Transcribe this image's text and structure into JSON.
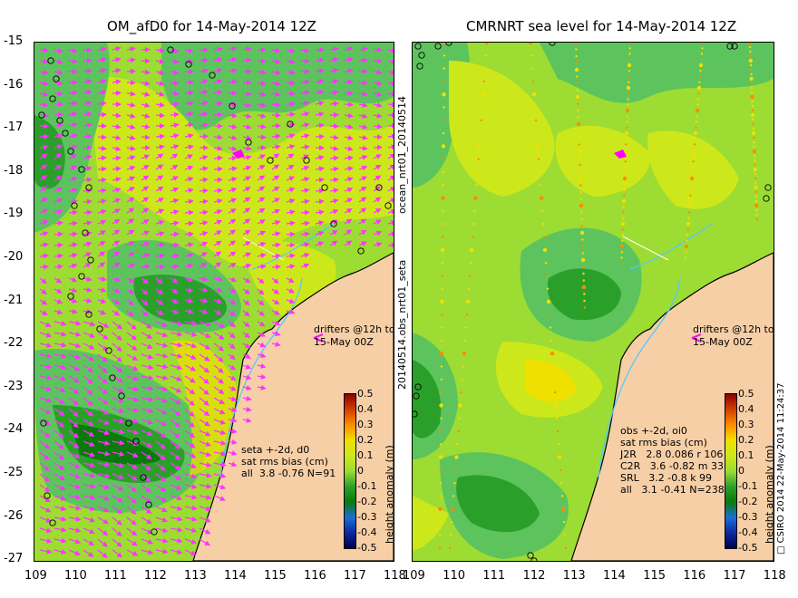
{
  "left_panel": {
    "title": "OM_afD0 for 14-May-2014 12Z",
    "drifters_text": [
      "drifters @12h to",
      "15-May 00Z"
    ],
    "stats_text": [
      "seta +-2d, d0",
      "sat rms bias (cm)",
      "all  3.8 -0.76 N=91"
    ],
    "colorbar_title": "height anomaly (m)"
  },
  "right_panel": {
    "title": "CMRNRT sea level  for 14-May-2014 12Z",
    "drifters_text": [
      "drifters @12h to",
      "15-May 00Z"
    ],
    "stats_text": [
      "obs +-2d, oi0",
      "sat rms bias (cm)",
      "J2R   2.8 0.086 r 106",
      "C2R   3.6 -0.82 m 33",
      "SRL   3.2 -0.8 k 99",
      "all   3.1 -0.41 N=238"
    ],
    "colorbar_title": "height anomaly (m)"
  },
  "x_ticks": [
    "109",
    "110",
    "111",
    "112",
    "113",
    "114",
    "115",
    "116",
    "117",
    "118"
  ],
  "y_ticks": [
    "-15",
    "-16",
    "-17",
    "-18",
    "-19",
    "-20",
    "-21",
    "-22",
    "-23",
    "-24",
    "-25",
    "-26",
    "-27"
  ],
  "colorbar_ticks": [
    "0.5",
    "0.4",
    "0.3",
    "0.2",
    "0.1",
    "0",
    "-0.1",
    "-0.2",
    "-0.3",
    "-0.4",
    "-0.5"
  ],
  "colors": {
    "land": "#f7cfa6",
    "coast": "#000000",
    "arrow": "#ff33ff",
    "drifter": "#ff00ff",
    "river": "#55c8ff",
    "sea_levels": [
      "#0a7a0a",
      "#2aa02a",
      "#5dc45d",
      "#9ddc33",
      "#cde81a",
      "#f0e000"
    ]
  },
  "side_text_top": "ocean_nrt01_20140514",
  "side_text_mid": "20140514.obs_nrt01_seta",
  "side_text_right": "□ CSIRO 2014   22-May-2014 11:24:37"
}
